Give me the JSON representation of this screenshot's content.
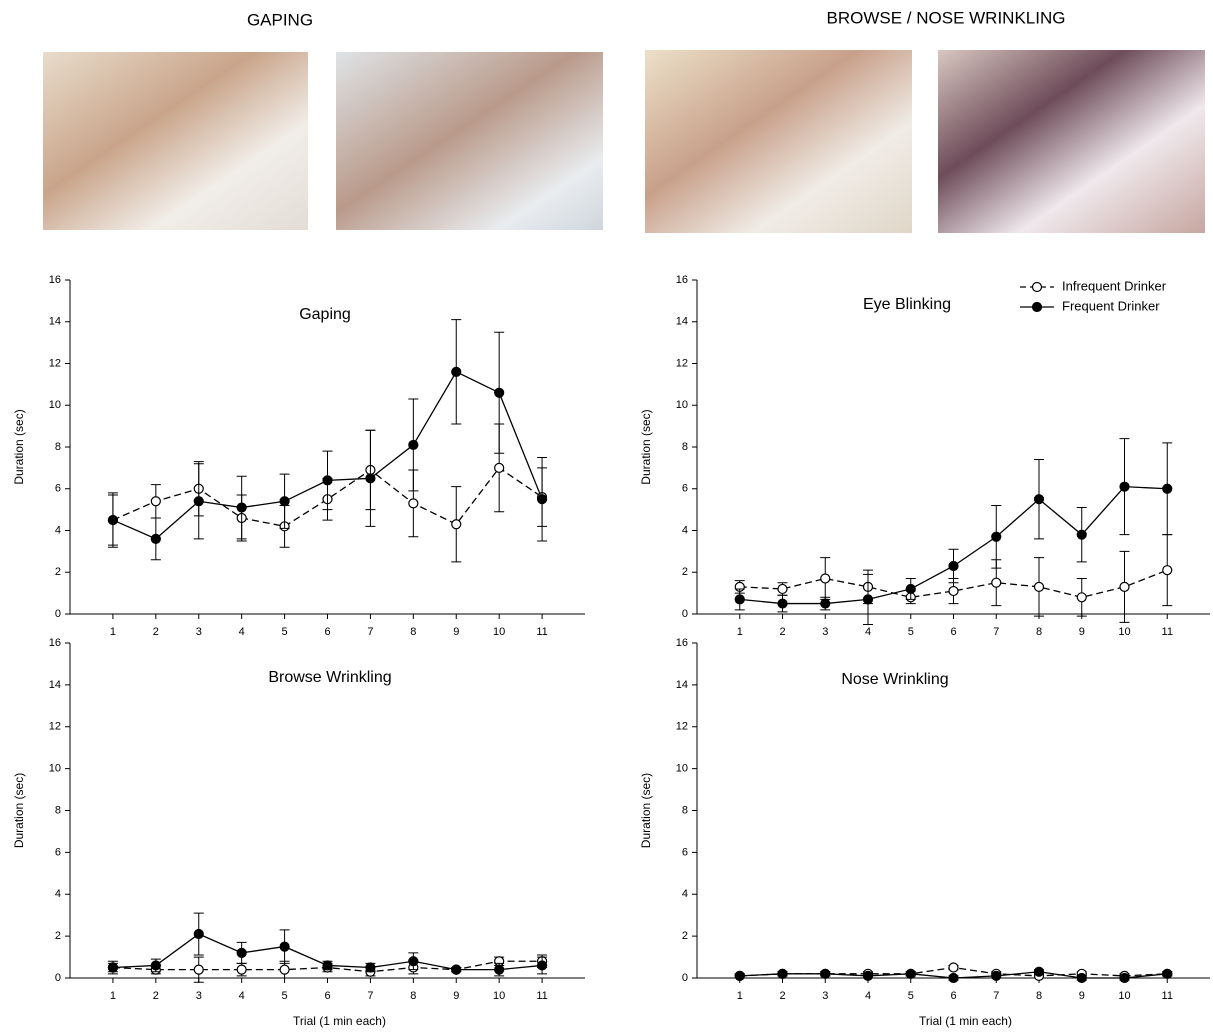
{
  "headings": [
    "GAPING",
    "BROWSE / NOSE WRINKLING"
  ],
  "chart_data": [
    {
      "type": "line",
      "title": "Gaping",
      "ylabel": "Duration (sec)",
      "x": [
        1,
        2,
        3,
        4,
        5,
        6,
        7,
        8,
        9,
        10,
        11
      ],
      "xlim": [
        0,
        12
      ],
      "xticks": [
        1,
        2,
        3,
        4,
        5,
        6,
        7,
        8,
        9,
        10,
        11
      ],
      "ylim": [
        0,
        16
      ],
      "yticks": [
        0,
        2,
        4,
        6,
        8,
        10,
        12,
        14,
        16
      ],
      "series": [
        {
          "color": "#000000",
          "style": "dashed",
          "marker": "open",
          "values": [
            4.5,
            5.4,
            6.0,
            4.6,
            4.2,
            5.5,
            6.9,
            5.3,
            4.3,
            7.0,
            5.6
          ],
          "errors": [
            1.2,
            0.8,
            1.3,
            1.1,
            1.0,
            1.0,
            1.9,
            1.6,
            1.8,
            2.1,
            1.4
          ]
        },
        {
          "color": "#000000",
          "style": "solid",
          "marker": "filled",
          "values": [
            4.5,
            3.6,
            5.4,
            5.1,
            5.4,
            6.4,
            6.5,
            8.1,
            11.6,
            10.6,
            5.5
          ],
          "errors": [
            1.3,
            1.0,
            1.8,
            1.5,
            1.3,
            1.4,
            2.3,
            2.2,
            2.5,
            2.9,
            2.0
          ]
        }
      ]
    },
    {
      "type": "line",
      "title": "Eye Blinking",
      "ylabel": "Duration (sec)",
      "x": [
        1,
        2,
        3,
        4,
        5,
        6,
        7,
        8,
        9,
        10,
        11
      ],
      "xlim": [
        0,
        12
      ],
      "xticks": [
        1,
        2,
        3,
        4,
        5,
        6,
        7,
        8,
        9,
        10,
        11
      ],
      "ylim": [
        0,
        16
      ],
      "yticks": [
        0,
        2,
        4,
        6,
        8,
        10,
        12,
        14,
        16
      ],
      "legend": "upper right",
      "series": [
        {
          "name": "Infrequent Drinker",
          "color": "#000000",
          "style": "dashed",
          "marker": "open",
          "values": [
            1.3,
            1.2,
            1.7,
            1.3,
            0.8,
            1.1,
            1.5,
            1.3,
            0.8,
            1.3,
            2.1
          ],
          "errors": [
            0.3,
            0.3,
            1.0,
            0.8,
            0.3,
            0.6,
            1.1,
            1.4,
            0.9,
            1.7,
            1.7
          ]
        },
        {
          "name": "Frequent Drinker",
          "color": "#000000",
          "style": "solid",
          "marker": "filled",
          "values": [
            0.7,
            0.5,
            0.5,
            0.7,
            1.2,
            2.3,
            3.7,
            5.5,
            3.8,
            6.1,
            6.0
          ],
          "errors": [
            0.5,
            0.4,
            0.3,
            1.2,
            0.5,
            0.8,
            1.5,
            1.9,
            1.3,
            2.3,
            2.2
          ]
        }
      ]
    },
    {
      "type": "line",
      "title": "Browse Wrinkling",
      "ylabel": "Duration (sec)",
      "xlabel": "Trial (1 min each)",
      "x": [
        1,
        2,
        3,
        4,
        5,
        6,
        7,
        8,
        9,
        10,
        11
      ],
      "xlim": [
        0,
        12
      ],
      "xticks": [
        1,
        2,
        3,
        4,
        5,
        6,
        7,
        8,
        9,
        10,
        11
      ],
      "ylim": [
        0,
        16
      ],
      "yticks": [
        0,
        2,
        4,
        6,
        8,
        10,
        12,
        14,
        16
      ],
      "series": [
        {
          "color": "#000000",
          "style": "dashed",
          "marker": "open",
          "values": [
            0.5,
            0.4,
            0.4,
            0.4,
            0.4,
            0.5,
            0.3,
            0.5,
            0.4,
            0.8,
            0.8
          ],
          "errors": [
            0.2,
            0.2,
            0.6,
            0.3,
            0.4,
            0.2,
            0.2,
            0.3,
            0.1,
            0.2,
            0.3
          ]
        },
        {
          "color": "#000000",
          "style": "solid",
          "marker": "filled",
          "values": [
            0.5,
            0.6,
            2.1,
            1.2,
            1.5,
            0.6,
            0.5,
            0.8,
            0.4,
            0.4,
            0.6
          ],
          "errors": [
            0.3,
            0.3,
            1.0,
            0.5,
            0.8,
            0.2,
            0.2,
            0.4,
            0.1,
            0.3,
            0.4
          ]
        }
      ]
    },
    {
      "type": "line",
      "title": "Nose Wrinkling",
      "ylabel": "Duration (sec)",
      "xlabel": "Trial (1 min each)",
      "x": [
        1,
        2,
        3,
        4,
        5,
        6,
        7,
        8,
        9,
        10,
        11
      ],
      "xlim": [
        0,
        12
      ],
      "xticks": [
        1,
        2,
        3,
        4,
        5,
        6,
        7,
        8,
        9,
        10,
        11
      ],
      "ylim": [
        0,
        16
      ],
      "yticks": [
        0,
        2,
        4,
        6,
        8,
        10,
        12,
        14,
        16
      ],
      "series": [
        {
          "color": "#000000",
          "style": "dashed",
          "marker": "open",
          "values": [
            0.1,
            0.2,
            0.2,
            0.2,
            0.2,
            0.5,
            0.2,
            0.1,
            0.2,
            0.1,
            0.2
          ],
          "errors": [
            0.1,
            0.1,
            0.1,
            0.1,
            0.1,
            0.1,
            0.1,
            0.1,
            0.1,
            0.1,
            0.1
          ]
        },
        {
          "color": "#000000",
          "style": "solid",
          "marker": "filled",
          "values": [
            0.1,
            0.2,
            0.2,
            0.1,
            0.2,
            0.0,
            0.1,
            0.3,
            0.0,
            0.0,
            0.2
          ],
          "errors": [
            0.1,
            0.1,
            0.1,
            0.1,
            0.1,
            0.1,
            0.1,
            0.1,
            0.1,
            0.1,
            0.1
          ]
        }
      ]
    }
  ]
}
